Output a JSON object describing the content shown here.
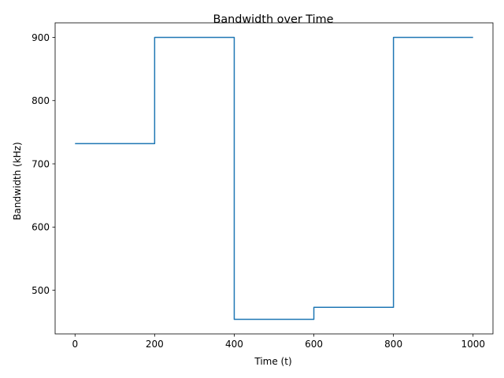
{
  "chart_data": {
    "type": "line",
    "title": "Bandwidth over Time",
    "xlabel": "Time (t)",
    "ylabel": "Bandwidth (kHz)",
    "xlim": [
      -50,
      1050
    ],
    "ylim": [
      431,
      923
    ],
    "xticks": [
      0,
      200,
      400,
      600,
      800,
      1000
    ],
    "yticks": [
      500,
      600,
      700,
      800,
      900
    ],
    "grid": false,
    "legend": "none",
    "series": [
      {
        "color": "#1f77b4",
        "step": "post",
        "x": [
          0,
          200,
          400,
          600,
          800,
          1000
        ],
        "y": [
          732,
          900,
          454,
          473,
          900,
          900
        ]
      }
    ]
  }
}
